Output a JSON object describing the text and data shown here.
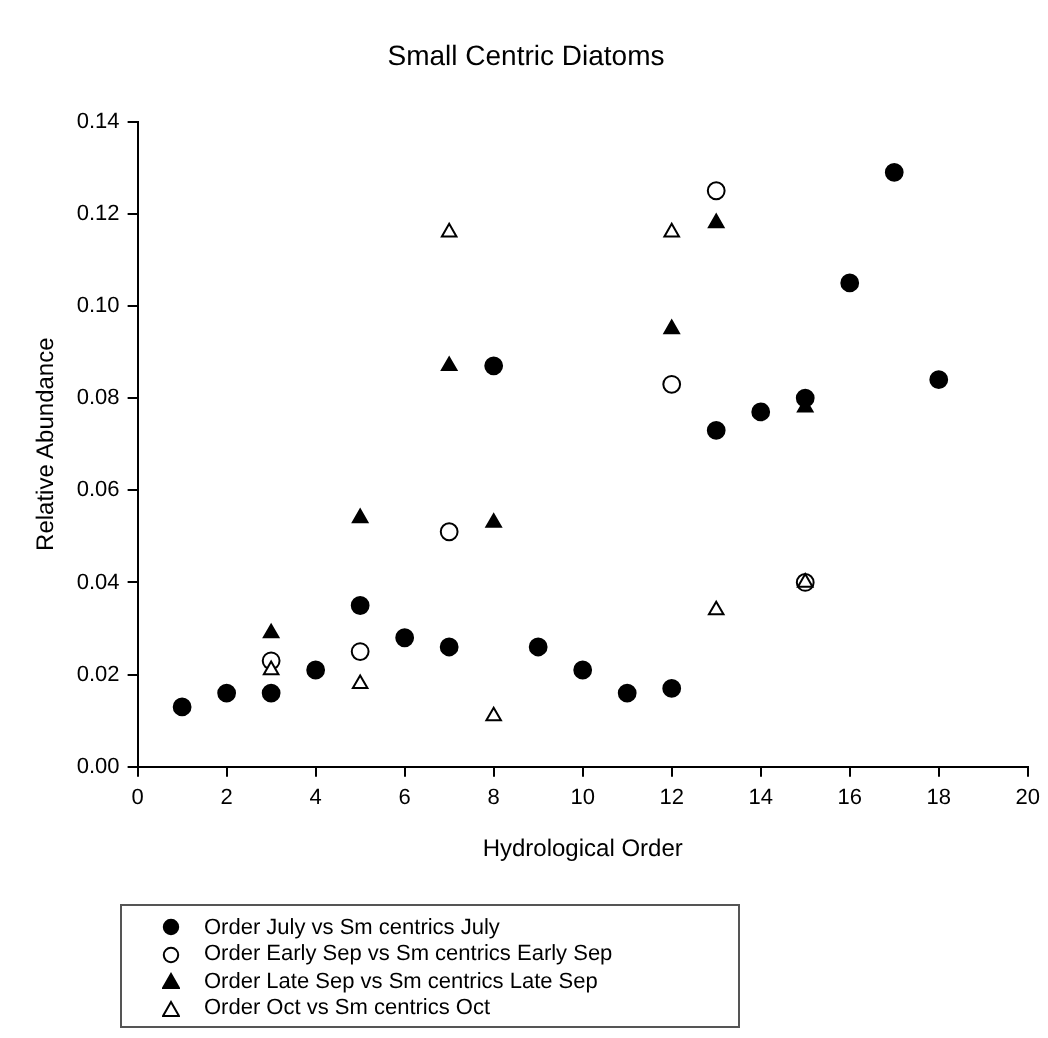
{
  "chart_data": {
    "type": "scatter",
    "title": "Small Centric Diatoms",
    "xlabel": "Hydrological Order",
    "ylabel": "Relative Abundance",
    "xlim": [
      0,
      20
    ],
    "xticks": [
      0,
      2,
      4,
      6,
      8,
      10,
      12,
      14,
      16,
      18,
      20
    ],
    "ylim": [
      0,
      0.14
    ],
    "yticks": [
      {
        "value": 0,
        "label": "0.00"
      },
      {
        "value": 0.02,
        "label": "0.02"
      },
      {
        "value": 0.04,
        "label": "0.04"
      },
      {
        "value": 0.06,
        "label": "0.06"
      },
      {
        "value": 0.08,
        "label": "0.08"
      },
      {
        "value": 0.1,
        "label": "0.10"
      },
      {
        "value": 0.12,
        "label": "0.12"
      },
      {
        "value": 0.14,
        "label": "0.14"
      }
    ],
    "grid": false,
    "legend": "bottom",
    "series": [
      {
        "name": "Order July vs Sm centrics July",
        "color": "#000000",
        "marker": "circle",
        "x": [
          1,
          2,
          3,
          4,
          5,
          6,
          7,
          8,
          9,
          10,
          11,
          12,
          13,
          14,
          15,
          16,
          17,
          18
        ],
        "values": [
          0.013,
          0.016,
          0.016,
          0.021,
          0.035,
          0.028,
          0.026,
          0.087,
          0.026,
          0.021,
          0.016,
          0.017,
          0.073,
          0.077,
          0.08,
          0.105,
          0.129,
          0.084
        ]
      },
      {
        "name": "Order Early Sep vs Sm centrics Early Sep",
        "color": "#ffffff",
        "marker": "circle",
        "x": [
          3,
          5,
          7,
          12,
          13,
          15
        ],
        "values": [
          0.023,
          0.025,
          0.051,
          0.083,
          0.125,
          0.04
        ]
      },
      {
        "name": "Order Late Sep vs Sm centrics Late Sep",
        "color": "#000000",
        "marker": "triangle",
        "x": [
          3,
          5,
          7,
          8,
          12,
          13,
          15
        ],
        "values": [
          0.029,
          0.054,
          0.087,
          0.053,
          0.095,
          0.118,
          0.078
        ]
      },
      {
        "name": "Order Oct vs Sm centrics Oct",
        "color": "#ffffff",
        "marker": "triangle",
        "x": [
          3,
          5,
          7,
          8,
          12,
          13,
          15
        ],
        "values": [
          0.021,
          0.018,
          0.116,
          0.011,
          0.116,
          0.034,
          0.04
        ]
      }
    ]
  }
}
